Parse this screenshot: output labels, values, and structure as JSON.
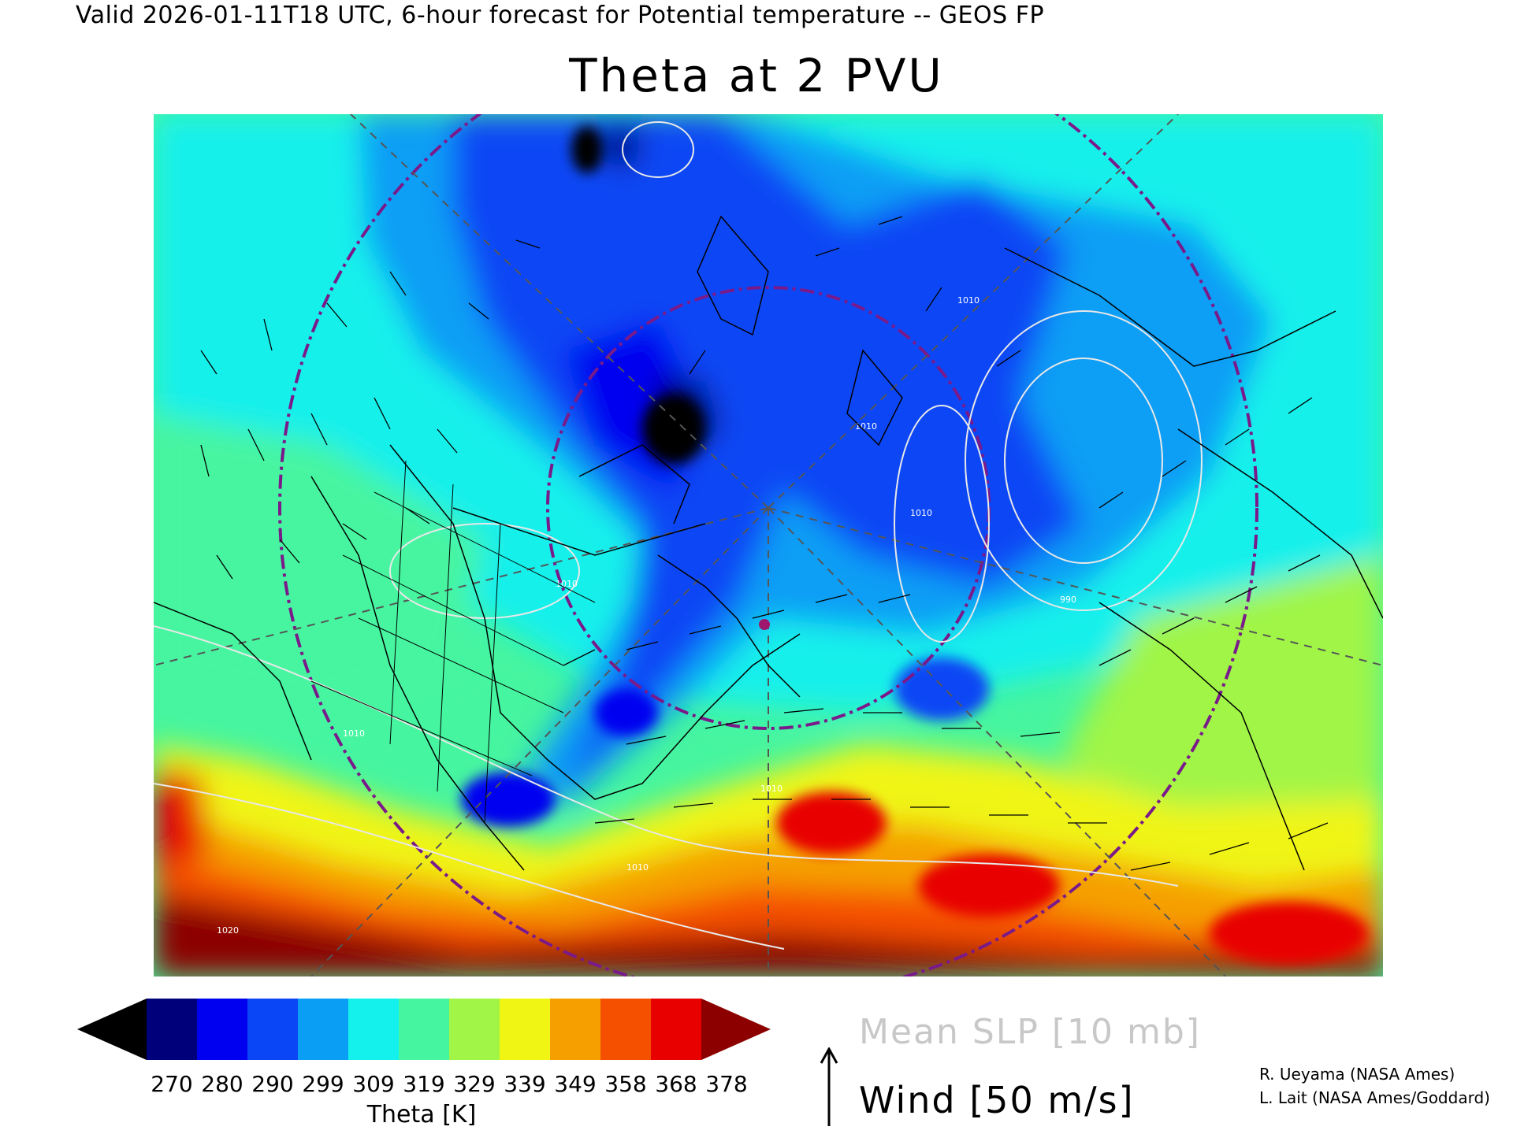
{
  "header": {
    "valid_line": "Valid 2026-01-11T18 UTC, 6-hour forecast for Potential temperature -- GEOS FP",
    "title": "Theta at 2 PVU"
  },
  "map": {
    "contour_labels": [
      "1010",
      "1010",
      "1010",
      "1010",
      "1010",
      "1010",
      "990",
      "1010",
      "1020"
    ],
    "marker_color": "#a0186e",
    "contour_color": "#e8e8e8",
    "latitude_circle_color": "#7a1a8a",
    "coastline_color": "#000000"
  },
  "colorbar": {
    "colors": [
      "#000000",
      "#00007a",
      "#0000f0",
      "#0a46f5",
      "#0a9ef5",
      "#14f0eb",
      "#46f5a0",
      "#a0f546",
      "#f0f514",
      "#f5a000",
      "#f55000",
      "#e80000",
      "#8c0000"
    ],
    "labels": [
      "270",
      "280",
      "290",
      "299",
      "309",
      "319",
      "329",
      "339",
      "349",
      "358",
      "368",
      "378"
    ],
    "title": "Theta [K]"
  },
  "legend": {
    "slp": "Mean SLP [10 mb]",
    "wind": "Wind [50 m/s]"
  },
  "credits": {
    "line1": "R. Ueyama (NASA Ames)",
    "line2": "L. Lait (NASA Ames/Goddard)"
  }
}
